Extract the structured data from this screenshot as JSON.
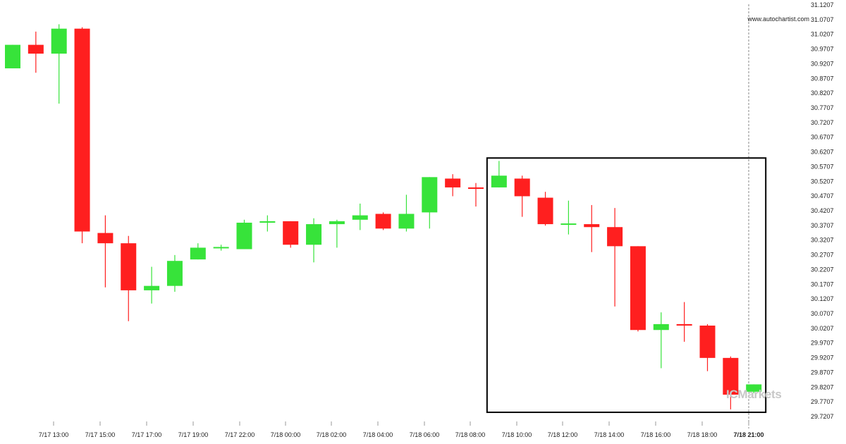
{
  "watermark": {
    "url": "www.autochartist.com",
    "logo": "ICMarkets"
  },
  "colors": {
    "up": "#37e33a",
    "down": "#ff1f1f",
    "highlight_box": "#000000",
    "current_line": "#888888"
  },
  "chart_data": {
    "type": "candlestick",
    "ylim": [
      29.7207,
      31.1207
    ],
    "y_ticks": [
      "31.1207",
      "31.0707",
      "31.0207",
      "30.9707",
      "30.9207",
      "30.8707",
      "30.8207",
      "30.7707",
      "30.7207",
      "30.6707",
      "30.6207",
      "30.5707",
      "30.5207",
      "30.4707",
      "30.4207",
      "30.3707",
      "30.3207",
      "30.2707",
      "30.2207",
      "30.1707",
      "30.1207",
      "30.0707",
      "30.0207",
      "29.9707",
      "29.9207",
      "29.8707",
      "29.8207",
      "29.7707",
      "29.7207"
    ],
    "x_ticks": [
      "7/17 13:00",
      "7/17 15:00",
      "7/17 17:00",
      "7/17 19:00",
      "7/17 22:00",
      "7/18 00:00",
      "7/18 02:00",
      "7/18 04:00",
      "7/18 06:00",
      "7/18 08:00",
      "7/18 10:00",
      "7/18 12:00",
      "7/18 14:00",
      "7/18 16:00",
      "7/18 18:00",
      "7/18 21:00"
    ],
    "x_tick_bold_last": true,
    "candles": [
      {
        "o": 30.905,
        "h": 30.985,
        "l": 30.905,
        "c": 30.985
      },
      {
        "o": 30.985,
        "h": 31.03,
        "l": 30.89,
        "c": 30.955
      },
      {
        "o": 30.955,
        "h": 31.055,
        "l": 30.785,
        "c": 31.04
      },
      {
        "o": 31.04,
        "h": 31.045,
        "l": 30.31,
        "c": 30.35
      },
      {
        "o": 30.345,
        "h": 30.405,
        "l": 30.16,
        "c": 30.31
      },
      {
        "o": 30.31,
        "h": 30.335,
        "l": 30.045,
        "c": 30.15
      },
      {
        "o": 30.15,
        "h": 30.23,
        "l": 30.105,
        "c": 30.165
      },
      {
        "o": 30.165,
        "h": 30.27,
        "l": 30.145,
        "c": 30.25
      },
      {
        "o": 30.255,
        "h": 30.31,
        "l": 30.255,
        "c": 30.295
      },
      {
        "o": 30.295,
        "h": 30.305,
        "l": 30.285,
        "c": 30.295
      },
      {
        "o": 30.29,
        "h": 30.39,
        "l": 30.29,
        "c": 30.38
      },
      {
        "o": 30.38,
        "h": 30.405,
        "l": 30.35,
        "c": 30.385
      },
      {
        "o": 30.385,
        "h": 30.385,
        "l": 30.295,
        "c": 30.305
      },
      {
        "o": 30.305,
        "h": 30.395,
        "l": 30.245,
        "c": 30.375
      },
      {
        "o": 30.375,
        "h": 30.39,
        "l": 30.295,
        "c": 30.385
      },
      {
        "o": 30.39,
        "h": 30.445,
        "l": 30.355,
        "c": 30.405
      },
      {
        "o": 30.41,
        "h": 30.415,
        "l": 30.355,
        "c": 30.36
      },
      {
        "o": 30.36,
        "h": 30.475,
        "l": 30.35,
        "c": 30.41
      },
      {
        "o": 30.415,
        "h": 30.535,
        "l": 30.36,
        "c": 30.535
      },
      {
        "o": 30.53,
        "h": 30.545,
        "l": 30.47,
        "c": 30.5
      },
      {
        "o": 30.5,
        "h": 30.515,
        "l": 30.435,
        "c": 30.495
      },
      {
        "o": 30.5,
        "h": 30.59,
        "l": 30.5,
        "c": 30.54
      },
      {
        "o": 30.53,
        "h": 30.54,
        "l": 30.4,
        "c": 30.47
      },
      {
        "o": 30.465,
        "h": 30.485,
        "l": 30.37,
        "c": 30.375
      },
      {
        "o": 30.375,
        "h": 30.455,
        "l": 30.34,
        "c": 30.375
      },
      {
        "o": 30.375,
        "h": 30.44,
        "l": 30.28,
        "c": 30.365
      },
      {
        "o": 30.365,
        "h": 30.43,
        "l": 30.095,
        "c": 30.3
      },
      {
        "o": 30.3,
        "h": 30.3,
        "l": 30.01,
        "c": 30.015
      },
      {
        "o": 30.015,
        "h": 30.075,
        "l": 29.885,
        "c": 30.035
      },
      {
        "o": 30.035,
        "h": 30.11,
        "l": 29.975,
        "c": 30.03
      },
      {
        "o": 30.03,
        "h": 30.035,
        "l": 29.875,
        "c": 29.92
      },
      {
        "o": 29.92,
        "h": 29.925,
        "l": 29.745,
        "c": 29.795
      },
      {
        "o": 29.805,
        "h": 29.83,
        "l": 29.8,
        "c": 29.83
      }
    ],
    "highlight": {
      "from_candle": 21,
      "to_candle": 32,
      "y_top": 30.6,
      "y_bottom": 29.735
    }
  }
}
